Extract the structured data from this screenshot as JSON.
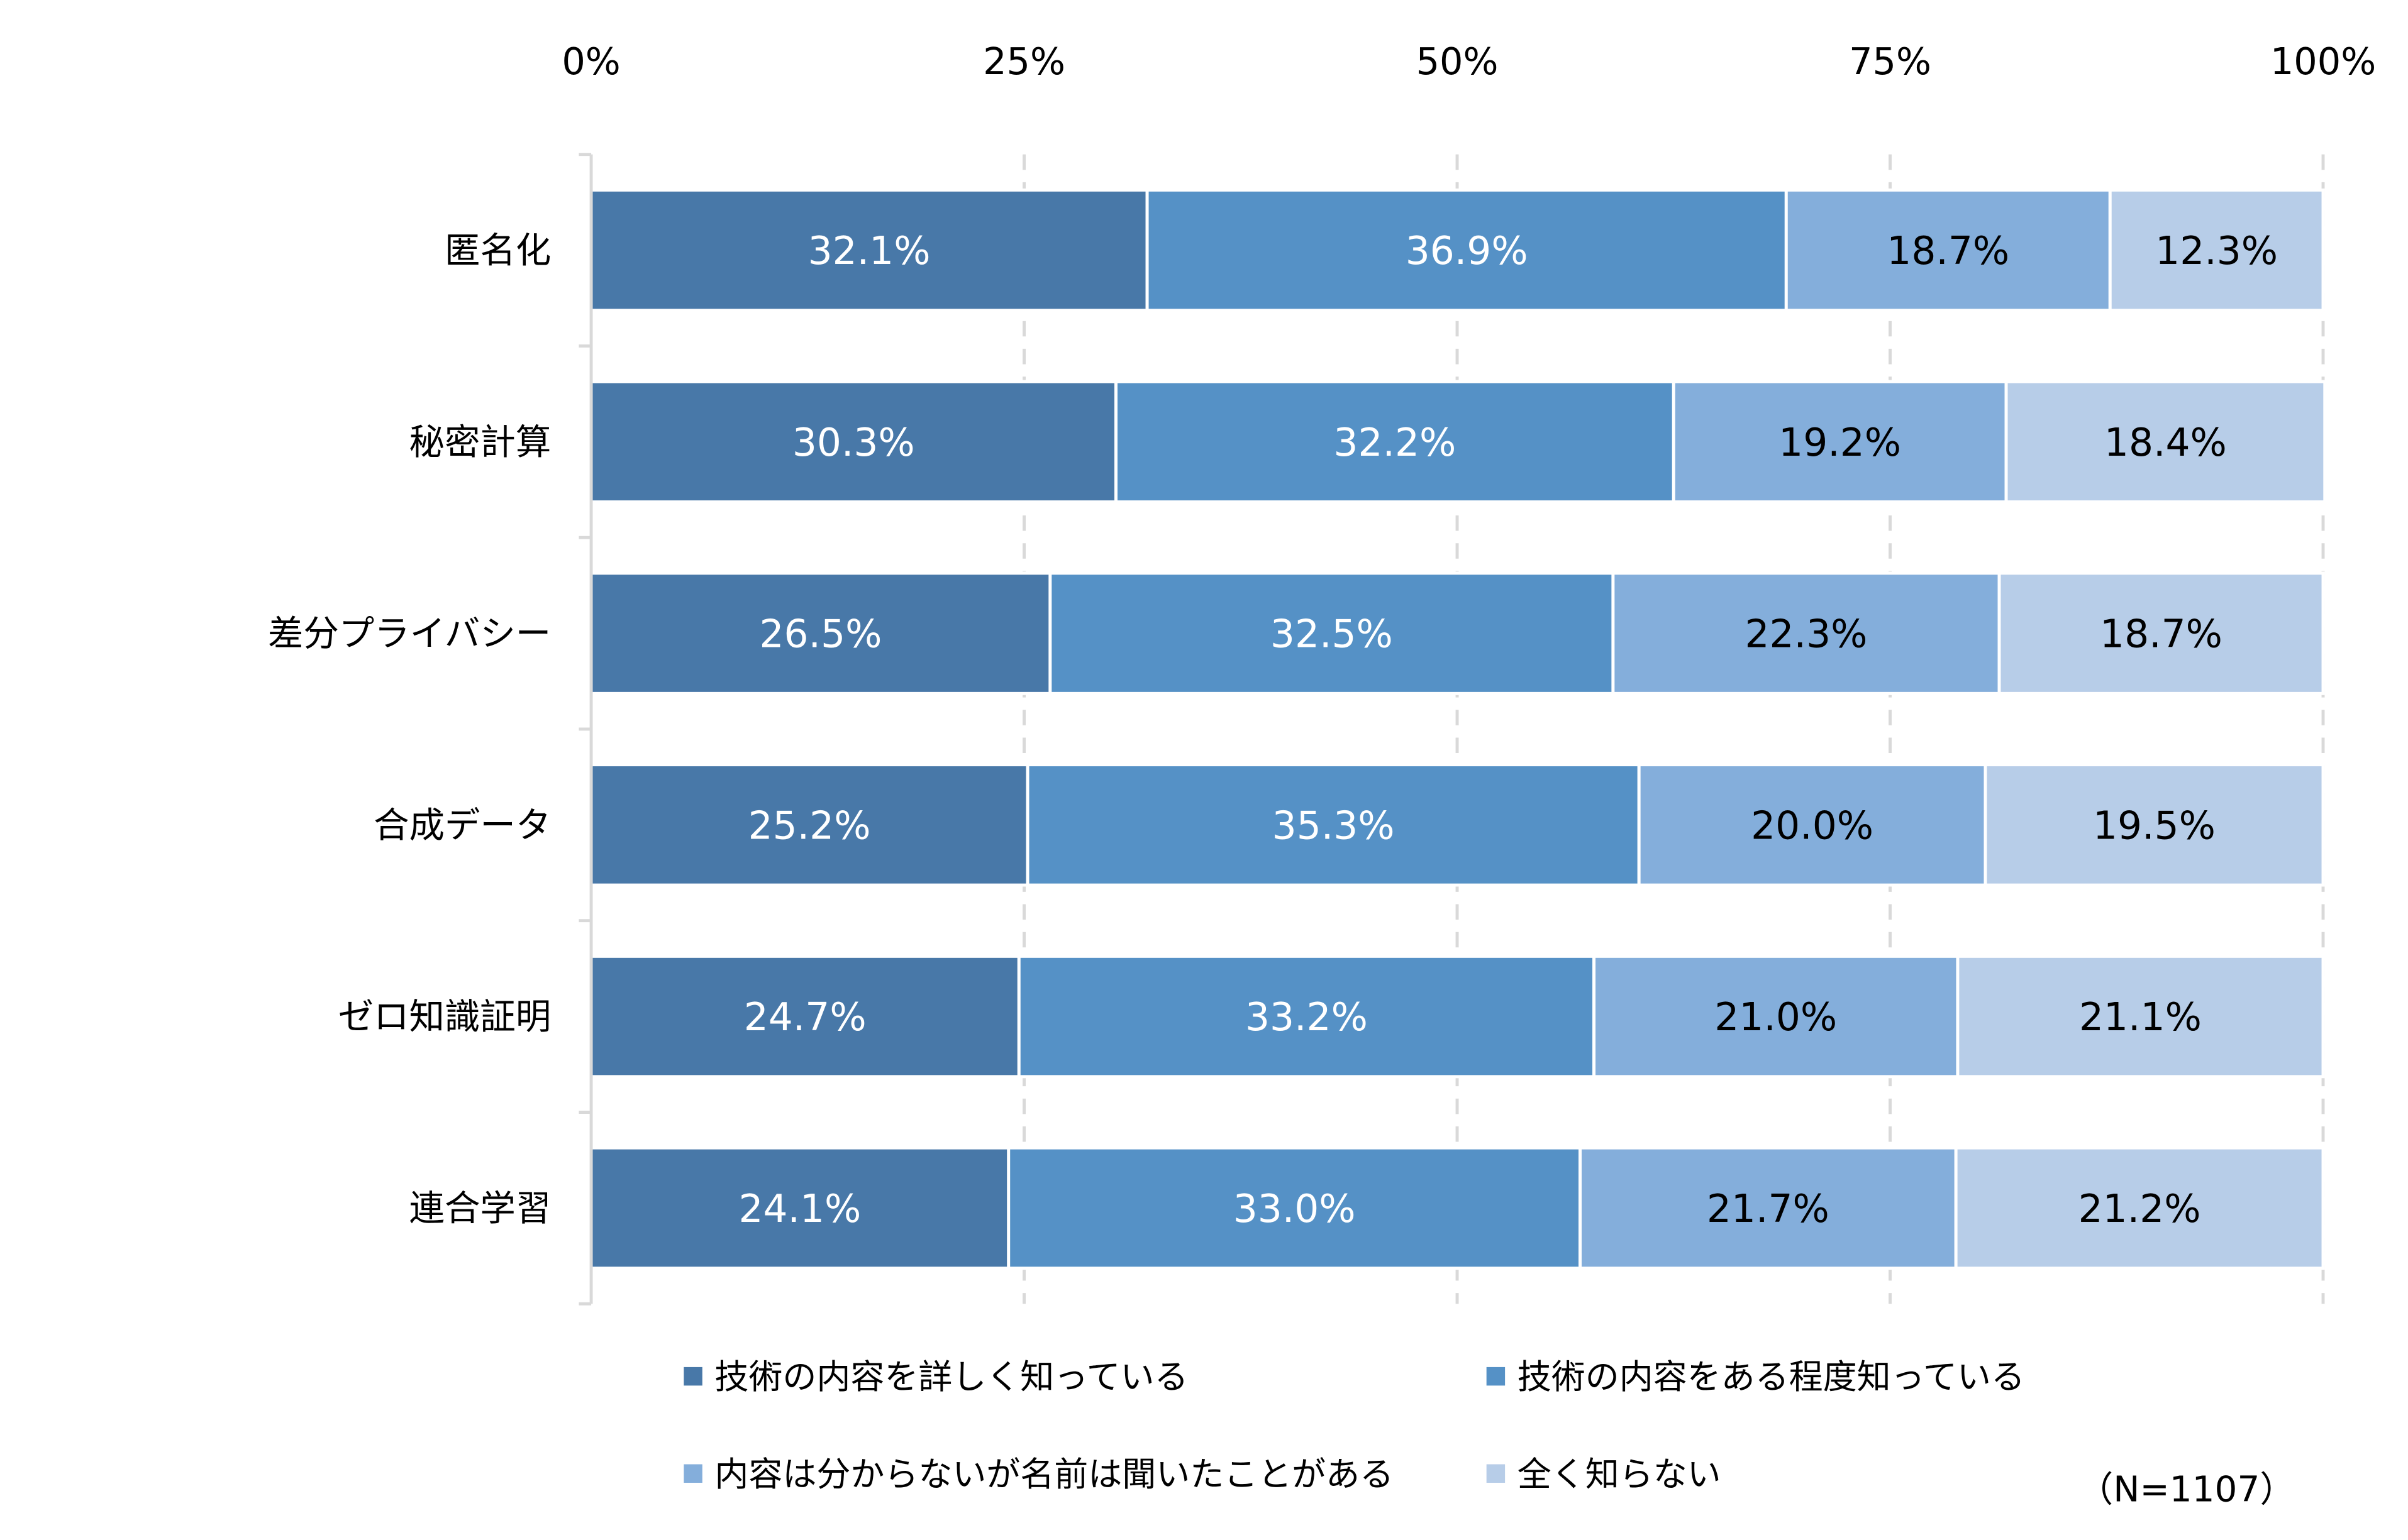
{
  "chart_data": {
    "type": "bar",
    "orientation": "horizontal",
    "stacked": true,
    "percent_stacked": true,
    "categories": [
      "匿名化",
      "秘密計算",
      "差分プライバシー",
      "合成データ",
      "ゼロ知識証明",
      "連合学習"
    ],
    "series": [
      {
        "name": "技術の内容を詳しく知っている",
        "color": "#4878A8",
        "label_color": "#ffffff",
        "values": [
          32.1,
          30.3,
          26.5,
          25.2,
          24.7,
          24.1
        ]
      },
      {
        "name": "技術の内容をある程度知っている",
        "color": "#5591C6",
        "label_color": "#ffffff",
        "values": [
          36.9,
          32.2,
          32.5,
          35.3,
          33.2,
          33.0
        ]
      },
      {
        "name": "内容は分からないが名前は聞いたことがある",
        "color": "#84AEDB",
        "label_color": "#000000",
        "values": [
          18.7,
          19.2,
          22.3,
          20.0,
          21.0,
          21.7
        ]
      },
      {
        "name": "全く知らない",
        "color": "#B7CDE8",
        "label_color": "#000000",
        "values": [
          12.3,
          18.4,
          18.7,
          19.5,
          21.1,
          21.2
        ]
      }
    ],
    "xlim": [
      0,
      100
    ],
    "x_ticks": [
      "0%",
      "25%",
      "50%",
      "75%",
      "100%"
    ],
    "x_axis_position": "top",
    "grid": "vertical dashed",
    "legend_position": "bottom",
    "data_label_format": "{v}%",
    "annotation": "（N=1107）"
  }
}
